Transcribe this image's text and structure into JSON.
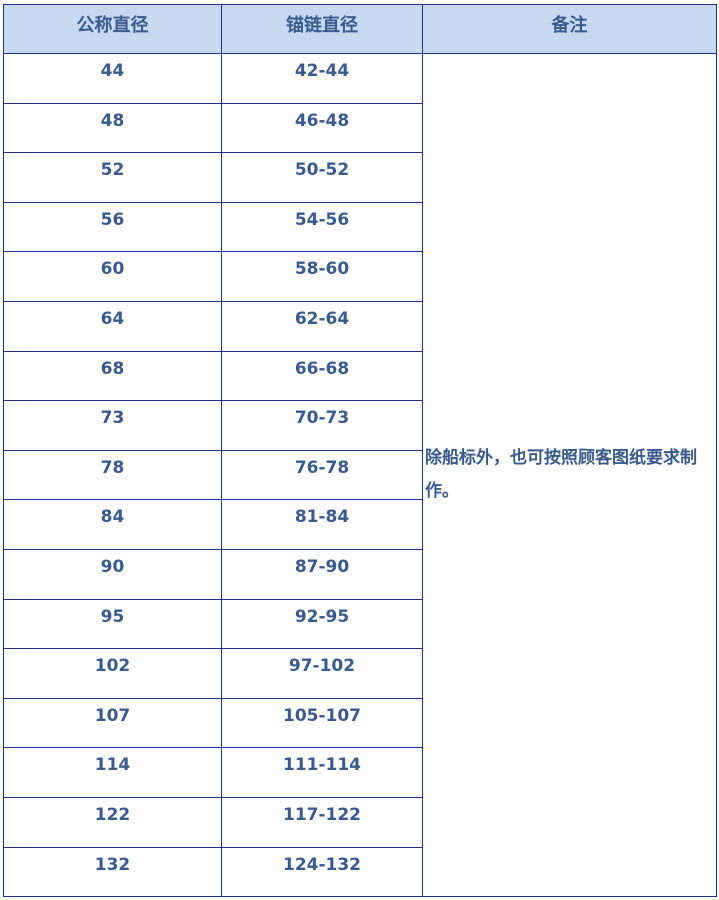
{
  "table": {
    "headers": [
      "公称直径",
      "锚链直径",
      "备注"
    ],
    "rows": [
      [
        "44",
        "42-44"
      ],
      [
        "48",
        "46-48"
      ],
      [
        "52",
        "50-52"
      ],
      [
        "56",
        "54-56"
      ],
      [
        "60",
        "58-60"
      ],
      [
        "64",
        "62-64"
      ],
      [
        "68",
        "66-68"
      ],
      [
        "73",
        "70-73"
      ],
      [
        "78",
        "76-78"
      ],
      [
        "84",
        "81-84"
      ],
      [
        "90",
        "87-90"
      ],
      [
        "95",
        "92-95"
      ],
      [
        "102",
        "97-102"
      ],
      [
        "107",
        "105-107"
      ],
      [
        "114",
        "111-114"
      ],
      [
        "122",
        "117-122"
      ],
      [
        "132",
        "124-132"
      ]
    ],
    "note": "除船标外，也可按照顾客图纸要求制作。"
  },
  "colors": {
    "header_bg": "#c6d9f1",
    "border": "#1f3090",
    "text": "#3b5a8c"
  }
}
